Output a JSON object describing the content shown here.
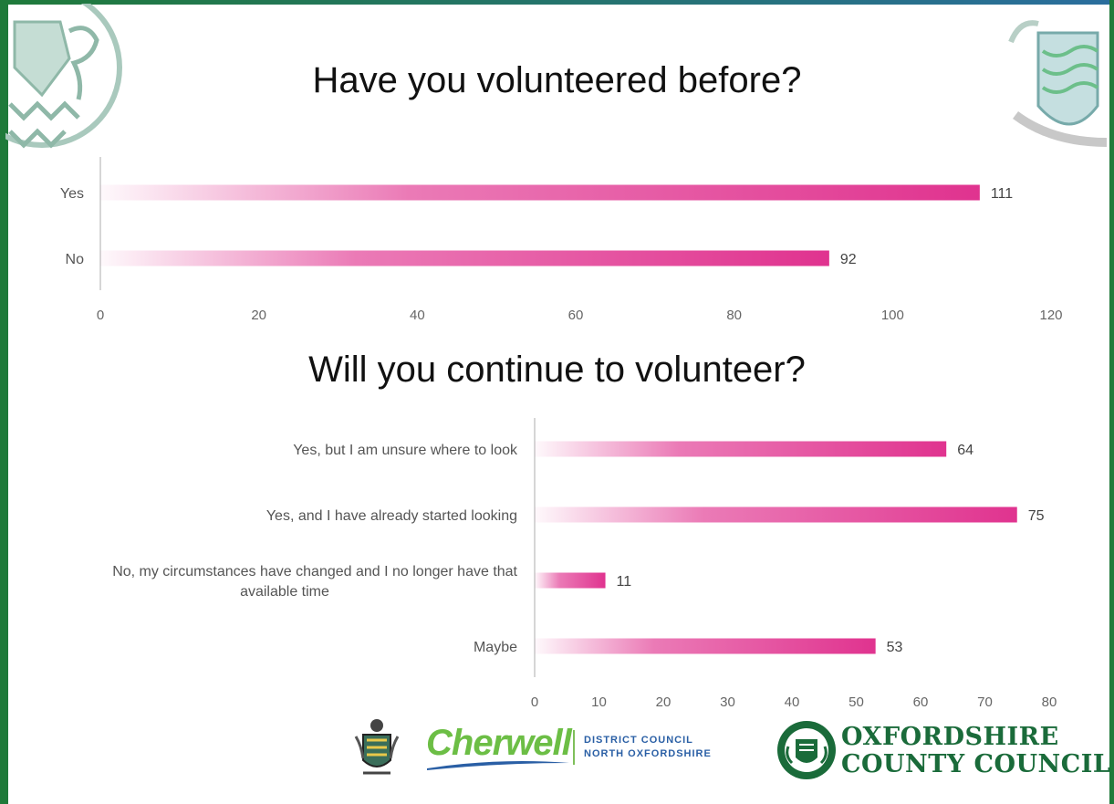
{
  "colors": {
    "bar": "#e0338f",
    "axis": "#c8c8c8",
    "frame": "#1f7a3a",
    "crest": "#8fb8a8"
  },
  "chart_data": [
    {
      "type": "bar",
      "orientation": "horizontal",
      "title": "Have you volunteered before?",
      "categories": [
        "Yes",
        "No"
      ],
      "values": [
        111,
        92
      ],
      "xlim": [
        0,
        120
      ],
      "xticks": [
        0,
        20,
        40,
        60,
        80,
        100,
        120
      ],
      "data_labels": [
        "111",
        "92"
      ]
    },
    {
      "type": "bar",
      "orientation": "horizontal",
      "title": "Will you continue to volunteer?",
      "categories": [
        "Yes, but I am unsure where to look",
        "Yes, and I have already started looking",
        "No, my circumstances have changed and I no longer have that available time",
        "Maybe"
      ],
      "category_lines": [
        [
          "Yes, but I am unsure where to look"
        ],
        [
          "Yes, and I have already started looking"
        ],
        [
          "No, my circumstances have changed and I no longer have that",
          "available time"
        ],
        [
          "Maybe"
        ]
      ],
      "values": [
        64,
        75,
        11,
        53
      ],
      "xlim": [
        0,
        80
      ],
      "xticks": [
        0,
        10,
        20,
        30,
        40,
        50,
        60,
        70,
        80
      ],
      "data_labels": [
        "64",
        "75",
        "11",
        "53"
      ]
    }
  ],
  "footer": {
    "cherwell": "Cherwell",
    "cherwell_sub1": "DISTRICT COUNCIL",
    "cherwell_sub2": "NORTH OXFORDSHIRE",
    "occ_line1": "OXFORDSHIRE",
    "occ_line2": "COUNTY COUNCIL"
  },
  "icons": [
    "cherwell-crest-icon",
    "oxfordshire-crest-icon",
    "crest-watermark-icon"
  ]
}
